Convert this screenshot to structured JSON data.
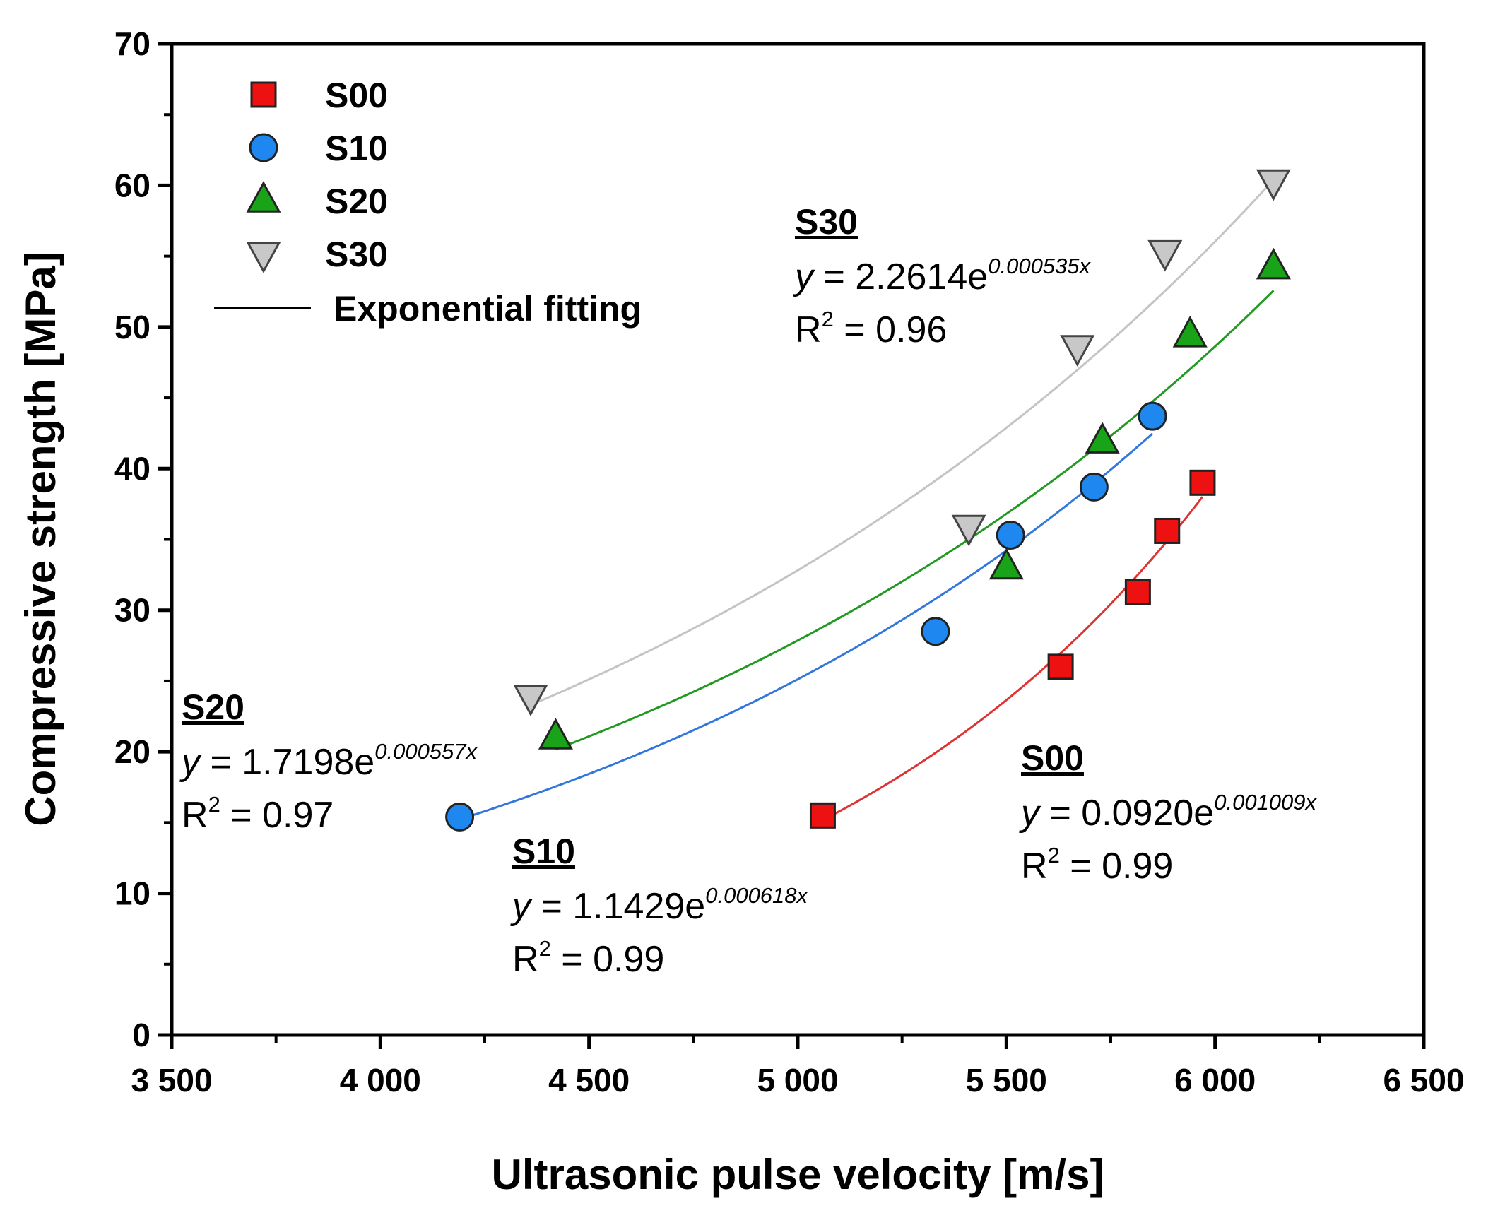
{
  "chart_data": {
    "type": "scatter",
    "xlabel": "Ultrasonic pulse velocity [m/s]",
    "ylabel": "Compressive strength [MPa]",
    "xlim": [
      3500,
      6500
    ],
    "ylim": [
      0,
      70
    ],
    "x_ticks": [
      3500,
      4000,
      4500,
      5000,
      5500,
      6000,
      6500
    ],
    "x_tick_labels": [
      "3 500",
      "4 000",
      "4 500",
      "5 000",
      "5 500",
      "6 000",
      "6 500"
    ],
    "y_ticks": [
      0,
      10,
      20,
      30,
      40,
      50,
      60,
      70
    ],
    "y_tick_labels": [
      "0",
      "10",
      "20",
      "30",
      "40",
      "50",
      "60",
      "70"
    ],
    "legend_position": "top-left",
    "fit_legend_label": "Exponential fitting",
    "series": [
      {
        "name": "S00",
        "marker": "square",
        "color": "#ee1111",
        "line_color": "#dd3333",
        "x": [
          5060,
          5630,
          5815,
          5885,
          5970
        ],
        "y": [
          15.5,
          26.0,
          31.3,
          35.6,
          39.0
        ],
        "fit": {
          "a": 0.092,
          "b": 0.001009,
          "x_range": [
            5060,
            5970
          ]
        },
        "annotation": {
          "title": "S00",
          "y_prefix": "y",
          "eq_text": " = 0.0920e",
          "exponent": "0.001009x",
          "r2_text": "R",
          "r2_value": " = 0.99",
          "r2_sup": "2"
        }
      },
      {
        "name": "S10",
        "marker": "circle",
        "color": "#1e88f0",
        "line_color": "#3377dd",
        "x": [
          4190,
          5330,
          5510,
          5710,
          5850
        ],
        "y": [
          15.4,
          28.5,
          35.3,
          38.7,
          43.7
        ],
        "fit": {
          "a": 1.1429,
          "b": 0.000618,
          "x_range": [
            4190,
            5850
          ]
        },
        "annotation": {
          "title": "S10",
          "y_prefix": "y",
          "eq_text": " = 1.1429e",
          "exponent": "0.000618x",
          "r2_text": "R",
          "r2_value": " = 0.99",
          "r2_sup": "2"
        }
      },
      {
        "name": "S20",
        "marker": "triangle-up",
        "color": "#19a319",
        "line_color": "#229922",
        "x": [
          4420,
          5500,
          5730,
          5940,
          6140
        ],
        "y": [
          21.0,
          33.0,
          41.9,
          49.4,
          54.2
        ],
        "fit": {
          "a": 1.7198,
          "b": 0.000557,
          "x_range": [
            4420,
            6140
          ]
        },
        "annotation": {
          "title": "S20",
          "y_prefix": "y",
          "eq_text": " = 1.7198e",
          "exponent": "0.000557x",
          "r2_text": "R",
          "r2_value": " = 0.97",
          "r2_sup": "2"
        }
      },
      {
        "name": "S30",
        "marker": "triangle-down",
        "color": "#c8c8c8",
        "line_color": "#c4c4c4",
        "x": [
          4360,
          5410,
          5670,
          5880,
          6140
        ],
        "y": [
          23.9,
          35.9,
          48.6,
          55.3,
          60.3
        ],
        "fit": {
          "a": 2.2614,
          "b": 0.000535,
          "x_range": [
            4360,
            6140
          ]
        },
        "annotation": {
          "title": "S30",
          "y_prefix": "y",
          "eq_text": " = 2.2614e",
          "exponent": "0.000535x",
          "r2_text": "R",
          "r2_value": " = 0.96",
          "r2_sup": "2"
        }
      }
    ]
  }
}
